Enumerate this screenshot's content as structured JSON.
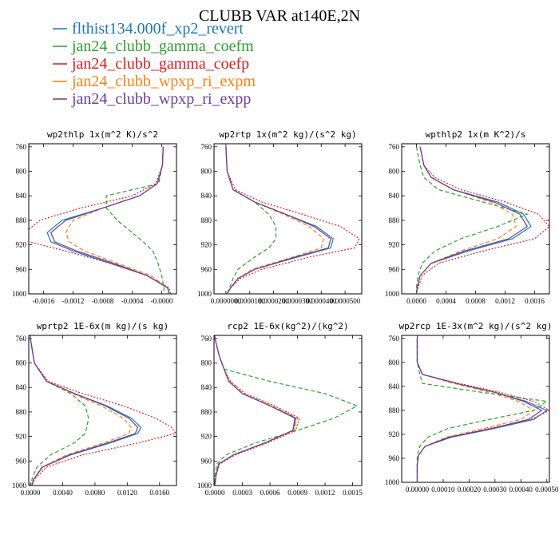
{
  "figure_title": "CLUBB VAR at140E,2N",
  "legend": [
    {
      "label": "flthist134.000f_xp2_revert",
      "color": "#1f77b4",
      "dash": "solid"
    },
    {
      "label": "jan24_clubb_gamma_coefm",
      "color": "#2ca02c",
      "dash": "dash"
    },
    {
      "label": "jan24_clubb_gamma_coefp",
      "color": "#e31a1c",
      "dash": "dot"
    },
    {
      "label": "jan24_clubb_wpxp_ri_expm",
      "color": "#ff7f0e",
      "dash": "dash"
    },
    {
      "label": "jan24_clubb_wpxp_ri_expp",
      "color": "#6a3d9a",
      "dash": "solid"
    }
  ],
  "chart_data": [
    {
      "type": "line",
      "title": "wp2thlp  1x(m^2 K)/s^2",
      "xlim": [
        -0.0018,
        0.0002
      ],
      "xticks": [
        -0.0016,
        -0.0012,
        -0.0008,
        -0.0004,
        0.0
      ],
      "xtick_labels": [
        "-0.0016",
        "-0.0012",
        "-0.0008",
        "-0.0004",
        "-0.0000"
      ],
      "ylim": [
        1000,
        755
      ],
      "yticks": [
        760,
        800,
        840,
        880,
        920,
        960,
        1000
      ],
      "y": [
        760,
        790,
        820,
        840,
        860,
        880,
        900,
        915,
        930,
        950,
        970,
        990,
        1000
      ],
      "series": [
        {
          "name": "flthist134.000f_xp2_revert",
          "x": [
            2e-05,
            1e-05,
            -6e-05,
            -0.0003,
            -0.0008,
            -0.00135,
            -0.00155,
            -0.0015,
            -0.0012,
            -0.0007,
            -0.0002,
            8e-05,
            0.0001
          ]
        },
        {
          "name": "jan24_clubb_gamma_coefm",
          "x": [
            2e-05,
            1e-05,
            -4e-05,
            -0.00075,
            -0.00075,
            -0.0006,
            -0.0004,
            -0.00025,
            -0.00012,
            -5e-05,
            0.0,
            3e-05,
            3e-05
          ]
        },
        {
          "name": "jan24_clubb_gamma_coefp",
          "x": [
            2e-05,
            1e-05,
            -8e-05,
            -0.0004,
            -0.0011,
            -0.00165,
            -0.00185,
            -0.0018,
            -0.0013,
            -0.0007,
            -0.0002,
            0.0001,
            0.00012
          ]
        },
        {
          "name": "jan24_clubb_wpxp_ri_expm",
          "x": [
            2e-05,
            1e-05,
            -6e-05,
            -0.0003,
            -0.0008,
            -0.0012,
            -0.0013,
            -0.00125,
            -0.00105,
            -0.0006,
            -0.00015,
            8e-05,
            0.0001
          ]
        },
        {
          "name": "jan24_clubb_wpxp_ri_expp",
          "x": [
            2e-05,
            1e-05,
            -6e-05,
            -0.0003,
            -0.0008,
            -0.0013,
            -0.0015,
            -0.00145,
            -0.00115,
            -0.00065,
            -0.0002,
            8e-05,
            0.0001
          ]
        }
      ]
    },
    {
      "type": "line",
      "title": "wp2rtp  1x(m^2 kg)/(s^2 kg)",
      "xlim": [
        -5e-06,
        5.7e-05
      ],
      "xticks": [
        0.0,
        1e-05,
        2e-05,
        3e-05,
        4e-05,
        5e-05
      ],
      "xtick_labels": [
        "0.0000000",
        "0.0000100",
        "0.0000200",
        "0.0000300",
        "0.0000400",
        "0.0000500"
      ],
      "ylim": [
        1000,
        755
      ],
      "yticks": [
        760,
        800,
        840,
        880,
        920,
        960,
        1000
      ],
      "y": [
        760,
        800,
        830,
        850,
        870,
        890,
        910,
        925,
        940,
        960,
        975,
        990,
        1000
      ],
      "series": [
        {
          "name": "flthist134.000f_xp2_revert",
          "x": [
            0.0,
            5e-07,
            3e-06,
            1.2e-05,
            2.5e-05,
            3.8e-05,
            4.5e-05,
            4.4e-05,
            3e-05,
            1.2e-05,
            5e-06,
            2e-06,
            5e-07
          ]
        },
        {
          "name": "jan24_clubb_gamma_coefm",
          "x": [
            0.0,
            5e-07,
            3e-06,
            1.2e-05,
            1.8e-05,
            2.1e-05,
            2.1e-05,
            1.8e-05,
            1.2e-05,
            5e-06,
            3e-06,
            1.5e-06,
            5e-07
          ]
        },
        {
          "name": "jan24_clubb_gamma_coefp",
          "x": [
            0.0,
            5e-07,
            4e-06,
            1.5e-05,
            3.2e-05,
            4.8e-05,
            5.6e-05,
            5.4e-05,
            3.5e-05,
            1.5e-05,
            6e-06,
            2e-06,
            5e-07
          ]
        },
        {
          "name": "jan24_clubb_wpxp_ri_expm",
          "x": [
            0.0,
            5e-07,
            3e-06,
            1.2e-05,
            2.4e-05,
            3.5e-05,
            4.1e-05,
            4e-05,
            2.8e-05,
            1.1e-05,
            5e-06,
            2e-06,
            5e-07
          ]
        },
        {
          "name": "jan24_clubb_wpxp_ri_expp",
          "x": [
            0.0,
            5e-07,
            3e-06,
            1.2e-05,
            2.5e-05,
            3.7e-05,
            4.4e-05,
            4.3e-05,
            2.9e-05,
            1.2e-05,
            5e-06,
            2e-06,
            5e-07
          ]
        }
      ]
    },
    {
      "type": "line",
      "title": "wpthlp2  1x(m K^2)/s",
      "xlim": [
        -0.0002,
        0.0018
      ],
      "xticks": [
        0.0,
        0.0004,
        0.0008,
        0.0012,
        0.0016
      ],
      "xtick_labels": [
        "0.0000",
        "0.0004",
        "0.0008",
        "0.0012",
        "0.0016"
      ],
      "ylim": [
        1000,
        755
      ],
      "yticks": [
        760,
        800,
        840,
        880,
        920,
        960,
        1000
      ],
      "y": [
        760,
        790,
        810,
        830,
        850,
        870,
        890,
        910,
        930,
        950,
        970,
        990,
        1000
      ],
      "series": [
        {
          "name": "flthist134.000f_xp2_revert",
          "x": [
            5e-05,
            0.0001,
            0.0002,
            0.0005,
            0.0011,
            0.00145,
            0.00155,
            0.0013,
            0.0007,
            0.0002,
            5e-05,
            1e-05,
            0.0
          ]
        },
        {
          "name": "jan24_clubb_gamma_coefm",
          "x": [
            0.0,
            5e-05,
            0.0001,
            0.0003,
            0.0009,
            0.0015,
            0.0011,
            0.0006,
            0.00025,
            8e-05,
            2e-05,
            0.0,
            0.0
          ]
        },
        {
          "name": "jan24_clubb_gamma_coefp",
          "x": [
            5e-05,
            0.0001,
            0.00025,
            0.0006,
            0.0012,
            0.00165,
            0.0018,
            0.0016,
            0.0009,
            0.0003,
            8e-05,
            2e-05,
            0.0
          ]
        },
        {
          "name": "jan24_clubb_wpxp_ri_expm",
          "x": [
            5e-05,
            0.0001,
            0.0002,
            0.0005,
            0.001,
            0.0013,
            0.00135,
            0.0011,
            0.0006,
            0.0002,
            5e-05,
            1e-05,
            0.0
          ]
        },
        {
          "name": "jan24_clubb_wpxp_ri_expp",
          "x": [
            5e-05,
            0.0001,
            0.0002,
            0.0005,
            0.00105,
            0.0014,
            0.0015,
            0.00125,
            0.00065,
            0.0002,
            5e-05,
            1e-05,
            0.0
          ]
        }
      ]
    },
    {
      "type": "line",
      "title": "wprtp2  1E-6x(m kg)/(s kg)",
      "xlim": [
        -0.0002,
        0.0181
      ],
      "xticks": [
        0.0,
        0.004,
        0.008,
        0.012,
        0.016
      ],
      "xtick_labels": [
        "0.0000",
        "0.0040",
        "0.0080",
        "0.0120",
        "0.0160"
      ],
      "ylim": [
        1000,
        755
      ],
      "yticks": [
        760,
        800,
        840,
        880,
        920,
        960,
        1000
      ],
      "y": [
        760,
        800,
        830,
        850,
        870,
        890,
        905,
        915,
        930,
        950,
        970,
        990,
        1000
      ],
      "series": [
        {
          "name": "flthist134.000f_xp2_revert",
          "x": [
            0.0,
            0.0005,
            0.002,
            0.0055,
            0.0095,
            0.0125,
            0.0137,
            0.0133,
            0.01,
            0.005,
            0.0015,
            0.0004,
            0.0002
          ]
        },
        {
          "name": "jan24_clubb_gamma_coefm",
          "x": [
            0.0,
            0.0005,
            0.002,
            0.005,
            0.0068,
            0.0072,
            0.007,
            0.0068,
            0.0055,
            0.0025,
            0.0008,
            0.0002,
            0.0001
          ]
        },
        {
          "name": "jan24_clubb_gamma_coefp",
          "x": [
            0.0,
            0.0005,
            0.0022,
            0.0065,
            0.0115,
            0.0155,
            0.0175,
            0.018,
            0.0135,
            0.0065,
            0.002,
            0.0005,
            0.0002
          ]
        },
        {
          "name": "jan24_clubb_wpxp_ri_expm",
          "x": [
            0.0,
            0.0005,
            0.002,
            0.0052,
            0.0088,
            0.0115,
            0.0125,
            0.0122,
            0.0092,
            0.0045,
            0.0014,
            0.0004,
            0.0002
          ]
        },
        {
          "name": "jan24_clubb_wpxp_ri_expp",
          "x": [
            0.0,
            0.0005,
            0.002,
            0.0055,
            0.0093,
            0.0122,
            0.0133,
            0.013,
            0.0097,
            0.0048,
            0.0015,
            0.0004,
            0.0002
          ]
        }
      ]
    },
    {
      "type": "line",
      "title": "rcp2  1E-6x(kg^2)/(kg^2)",
      "xlim": [
        -1e-05,
        0.0016
      ],
      "xticks": [
        0.0,
        0.0003,
        0.0006,
        0.0009,
        0.0012,
        0.0015
      ],
      "xtick_labels": [
        "0.0000",
        "0.0003",
        "0.0006",
        "0.0009",
        "0.0012",
        "0.0015"
      ],
      "ylim": [
        1000,
        755
      ],
      "yticks": [
        760,
        800,
        840,
        880,
        920,
        960,
        1000
      ],
      "y": [
        760,
        790,
        810,
        830,
        850,
        870,
        890,
        910,
        930,
        950,
        965,
        985,
        1000
      ],
      "series": [
        {
          "name": "flthist134.000f_xp2_revert",
          "x": [
            0.0,
            5e-05,
            0.0001,
            0.00015,
            0.0003,
            0.0006,
            0.00087,
            0.00085,
            0.00055,
            0.0002,
            4e-05,
            1e-05,
            0.0
          ]
        },
        {
          "name": "jan24_clubb_gamma_coefm",
          "x": [
            0.0,
            5e-05,
            0.0001,
            0.0006,
            0.0012,
            0.00155,
            0.0013,
            0.0009,
            0.00045,
            0.00012,
            2e-05,
            0.0,
            0.0
          ]
        },
        {
          "name": "jan24_clubb_gamma_coefp",
          "x": [
            0.0,
            5e-05,
            0.0001,
            0.00017,
            0.00033,
            0.00065,
            0.00092,
            0.00088,
            0.00058,
            0.00022,
            5e-05,
            1e-05,
            0.0
          ]
        },
        {
          "name": "jan24_clubb_wpxp_ri_expm",
          "x": [
            0.0,
            5e-05,
            0.0001,
            0.00016,
            0.00031,
            0.00062,
            0.0009,
            0.00086,
            0.00056,
            0.0002,
            4e-05,
            1e-05,
            0.0
          ]
        },
        {
          "name": "jan24_clubb_wpxp_ri_expp",
          "x": [
            0.0,
            5e-05,
            0.0001,
            0.00015,
            0.0003,
            0.0006,
            0.00088,
            0.00085,
            0.00055,
            0.0002,
            4e-05,
            1e-05,
            0.0
          ]
        }
      ]
    },
    {
      "type": "line",
      "title": "wp2rcp  1E-3x(m^2 kg)/(s^2 kg)",
      "xlim": [
        -6e-05,
        0.00051
      ],
      "xticks": [
        0.0,
        0.0001,
        0.0002,
        0.0003,
        0.0004,
        0.0005
      ],
      "xtick_labels": [
        "0.00000",
        "0.00010",
        "0.00020",
        "0.00030",
        "0.00040",
        "0.00050"
      ],
      "ylim": [
        1000,
        755
      ],
      "yticks": [
        760,
        800,
        840,
        880,
        920,
        960,
        1000
      ],
      "y": [
        760,
        800,
        820,
        835,
        850,
        865,
        880,
        895,
        910,
        925,
        940,
        955,
        970,
        1000
      ],
      "series": [
        {
          "name": "flthist134.000f_xp2_revert",
          "x": [
            0.0,
            0.0,
            2e-05,
            0.00015,
            0.0003,
            0.00042,
            0.0005,
            0.00045,
            0.0003,
            0.00013,
            3e-05,
            5e-06,
            0.0,
            0.0
          ]
        },
        {
          "name": "jan24_clubb_gamma_coefm",
          "x": [
            0.0,
            0.0,
            1e-05,
            2e-05,
            0.00025,
            0.0005,
            0.00045,
            0.00028,
            0.00012,
            4e-05,
            1e-05,
            0.0,
            0.0,
            0.0
          ]
        },
        {
          "name": "jan24_clubb_gamma_coefp",
          "x": [
            0.0,
            0.0,
            2e-05,
            0.00016,
            0.00032,
            0.00045,
            0.00051,
            0.00044,
            0.00028,
            0.00012,
            3e-05,
            5e-06,
            0.0,
            0.0
          ]
        },
        {
          "name": "jan24_clubb_wpxp_ri_expm",
          "x": [
            0.0,
            0.0,
            2e-05,
            0.00014,
            0.00028,
            0.00039,
            0.00045,
            0.0004,
            0.00026,
            0.00011,
            3e-05,
            5e-06,
            0.0,
            0.0
          ]
        },
        {
          "name": "jan24_clubb_wpxp_ri_expp",
          "x": [
            0.0,
            0.0,
            2e-05,
            0.00015,
            0.0003,
            0.00041,
            0.00048,
            0.00043,
            0.00029,
            0.00012,
            3e-05,
            5e-06,
            0.0,
            0.0
          ]
        }
      ]
    }
  ]
}
